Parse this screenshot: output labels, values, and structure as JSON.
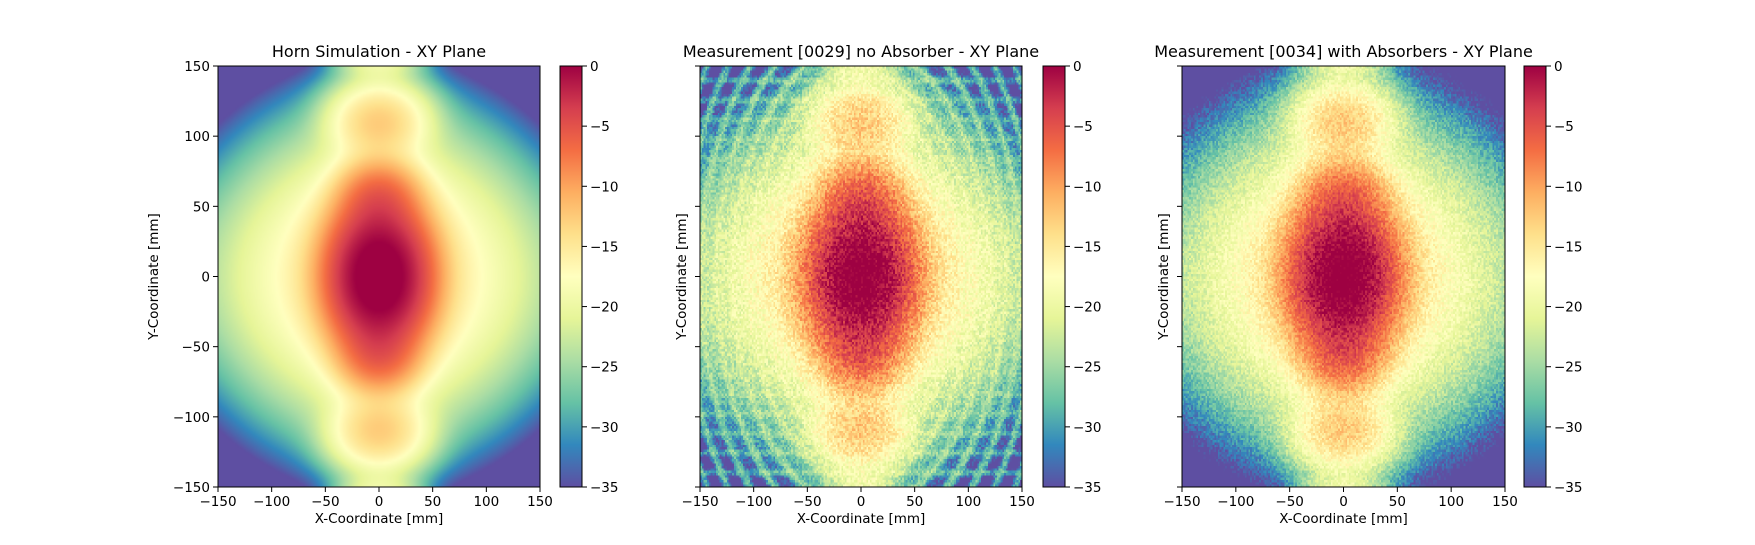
{
  "colormap": {
    "name": "Spectral_r",
    "stops": [
      "#5e4fa2",
      "#3288bd",
      "#66c2a5",
      "#abdda4",
      "#e6f598",
      "#ffffbf",
      "#fee08b",
      "#fdae61",
      "#f46d43",
      "#d53e4f",
      "#9e0142"
    ]
  },
  "chart_data": [
    {
      "type": "heatmap",
      "title": "Horn Simulation - XY Plane",
      "xlabel": "X-Coordinate [mm]",
      "ylabel": "Y-Coordinate [mm]",
      "xlim": [
        -150,
        150
      ],
      "ylim": [
        -150,
        150
      ],
      "xticks": [
        "−150",
        "−100",
        "−50",
        "0",
        "50",
        "100",
        "150"
      ],
      "yticks": [
        "−150",
        "−100",
        "−50",
        "0",
        "50",
        "100",
        "150"
      ],
      "show_ytick_labels": true,
      "colorbar": {
        "range": [
          -35,
          0
        ],
        "ticks": [
          "0",
          "−5",
          "−10",
          "−15",
          "−20",
          "−25",
          "−30",
          "−35"
        ]
      },
      "field": {
        "kind": "simulation",
        "noise": 0,
        "ring_level": 0
      },
      "value_range_db": [
        -35,
        0
      ]
    },
    {
      "type": "heatmap",
      "title": "Measurement [0029] no Absorber - XY Plane",
      "xlabel": "X-Coordinate [mm]",
      "ylabel": "Y-Coordinate [mm]",
      "xlim": [
        -150,
        150
      ],
      "ylim": [
        -150,
        150
      ],
      "xticks": [
        "−150",
        "−100",
        "−50",
        "0",
        "50",
        "100",
        "150"
      ],
      "yticks": [
        "−150",
        "−100",
        "−50",
        "0",
        "50",
        "100",
        "150"
      ],
      "show_ytick_labels": false,
      "colorbar": {
        "range": [
          -35,
          0
        ],
        "ticks": [
          "0",
          "−5",
          "−10",
          "−15",
          "−20",
          "−25",
          "−30",
          "−35"
        ]
      },
      "field": {
        "kind": "measurement",
        "noise": 2.5,
        "ring_level": 1
      },
      "value_range_db": [
        -35,
        0
      ]
    },
    {
      "type": "heatmap",
      "title": "Measurement [0034] with Absorbers - XY Plane",
      "xlabel": "X-Coordinate [mm]",
      "ylabel": "Y-Coordinate [mm]",
      "xlim": [
        -150,
        150
      ],
      "ylim": [
        -150,
        150
      ],
      "xticks": [
        "−150",
        "−100",
        "−50",
        "0",
        "50",
        "100",
        "150"
      ],
      "yticks": [
        "−150",
        "−100",
        "−50",
        "0",
        "50",
        "100",
        "150"
      ],
      "show_ytick_labels": false,
      "colorbar": {
        "range": [
          -35,
          0
        ],
        "ticks": [
          "0",
          "−5",
          "−10",
          "−15",
          "−20",
          "−25",
          "−30",
          "−35"
        ]
      },
      "field": {
        "kind": "measurement",
        "noise": 2.0,
        "ring_level": 0
      },
      "value_range_db": [
        -35,
        0
      ]
    }
  ]
}
